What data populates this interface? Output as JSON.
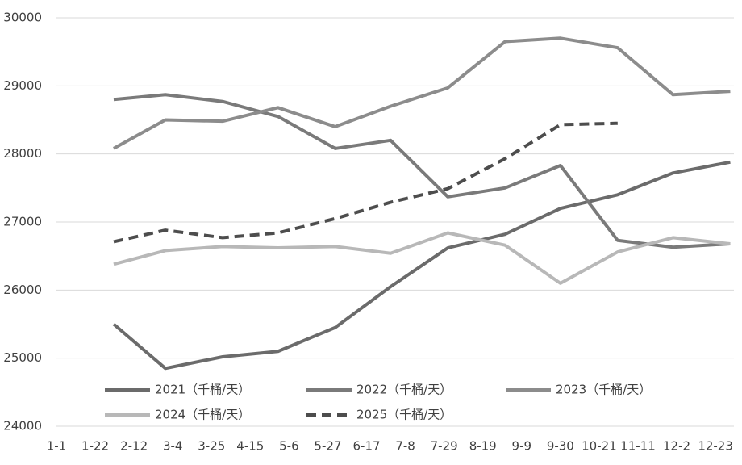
{
  "chart_data": {
    "type": "line",
    "x": [
      31,
      59,
      90,
      120,
      151,
      181,
      212,
      243,
      273,
      304,
      334,
      365
    ],
    "xlim": [
      0,
      367
    ],
    "xticks": [
      {
        "value": 0,
        "label": "1-1"
      },
      {
        "value": 21,
        "label": "1-22"
      },
      {
        "value": 42,
        "label": "2-12"
      },
      {
        "value": 63,
        "label": "3-4"
      },
      {
        "value": 84,
        "label": "3-25"
      },
      {
        "value": 105,
        "label": "4-15"
      },
      {
        "value": 126,
        "label": "5-6"
      },
      {
        "value": 147,
        "label": "5-27"
      },
      {
        "value": 168,
        "label": "6-17"
      },
      {
        "value": 189,
        "label": "7-8"
      },
      {
        "value": 210,
        "label": "7-29"
      },
      {
        "value": 231,
        "label": "8-19"
      },
      {
        "value": 252,
        "label": "9-9"
      },
      {
        "value": 273,
        "label": "9-30"
      },
      {
        "value": 294,
        "label": "10-21"
      },
      {
        "value": 315,
        "label": "11-11"
      },
      {
        "value": 336,
        "label": "12-2"
      },
      {
        "value": 357,
        "label": "12-23"
      }
    ],
    "ylim": [
      24000,
      30000
    ],
    "yticks": [
      24000,
      25000,
      26000,
      27000,
      28000,
      29000,
      30000
    ],
    "grid": true,
    "series": [
      {
        "name": "2021（千桶/天）",
        "color": "#6b6b6b",
        "dashed": false,
        "values": [
          25500,
          24850,
          25020,
          25100,
          25450,
          26050,
          26620,
          26820,
          27200,
          27400,
          27720,
          27880
        ]
      },
      {
        "name": "2022（千桶/天）",
        "color": "#7a7a7a",
        "dashed": false,
        "values": [
          28800,
          28870,
          28770,
          28550,
          28080,
          28200,
          27370,
          27500,
          27830,
          26730,
          26630,
          26680
        ]
      },
      {
        "name": "2023（千桶/天）",
        "color": "#8c8c8c",
        "dashed": false,
        "values": [
          28080,
          28500,
          28480,
          28680,
          28400,
          28700,
          28970,
          29650,
          29700,
          29560,
          28870,
          28920
        ]
      },
      {
        "name": "2024（千桶/天）",
        "color": "#b8b8b8",
        "dashed": false,
        "values": [
          26380,
          26580,
          26640,
          26620,
          26640,
          26540,
          26840,
          26660,
          26100,
          26560,
          26770,
          26680
        ]
      },
      {
        "name": "2025（千桶/天）",
        "color": "#4d4d4d",
        "dashed": true,
        "values": [
          26710,
          26880,
          26770,
          26840,
          27050,
          27290,
          27490,
          27930,
          28430,
          28450,
          null,
          null
        ]
      }
    ]
  }
}
